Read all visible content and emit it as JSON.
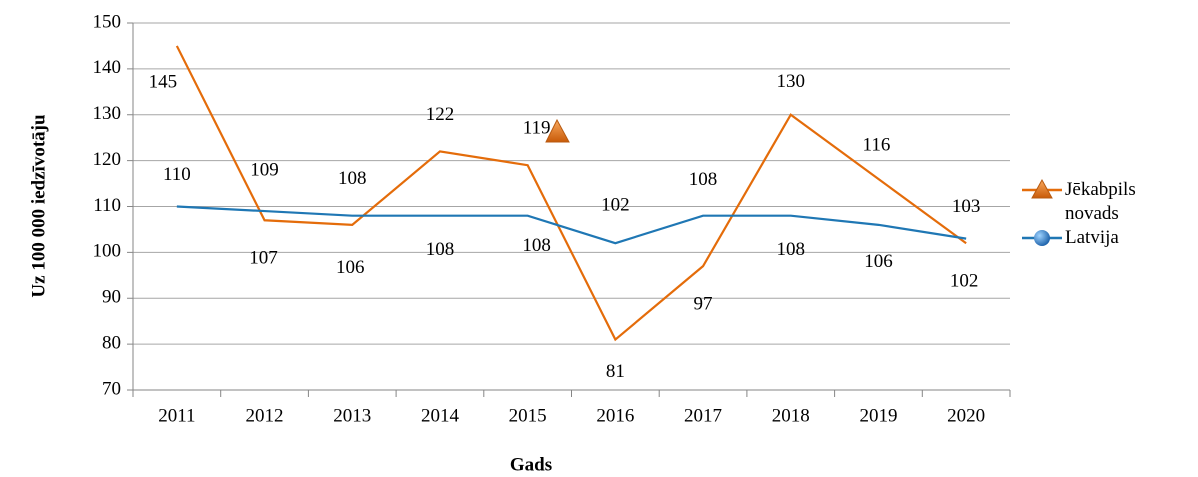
{
  "chart_data": {
    "type": "line",
    "y_label": "Uz 100 000 iedzīvotāju",
    "x_label": "Gads",
    "categories": [
      "2011",
      "2012",
      "2013",
      "2014",
      "2015",
      "2016",
      "2017",
      "2018",
      "2019",
      "2020"
    ],
    "series": [
      {
        "name": "Jēkabpils novads",
        "color": "#e46c0a",
        "values": [
          145,
          107,
          106,
          122,
          119,
          81,
          97,
          130,
          116,
          102
        ]
      },
      {
        "name": "Latvija",
        "color": "#1f77b4",
        "values": [
          110,
          109,
          108,
          108,
          108,
          102,
          108,
          108,
          106,
          103
        ]
      }
    ],
    "ylim": [
      70,
      150
    ],
    "yticks": [
      70,
      80,
      90,
      100,
      110,
      120,
      130,
      140,
      150
    ],
    "grid": true
  }
}
